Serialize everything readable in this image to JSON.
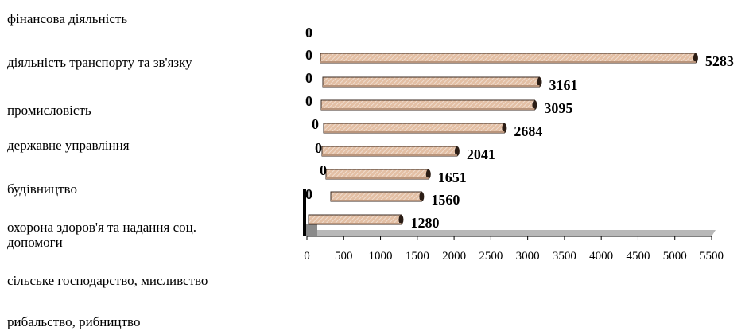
{
  "categories": [
    "фінансова діяльність",
    "діяльність транспорту та зв'язку",
    "промисловість",
    "державне управління",
    "будівництво",
    "охорона здоров'я та надання соц.\nдопомоги",
    "сільське господарство, мисливство",
    "рибальство,  рибництво"
  ],
  "chart_data": {
    "type": "bar",
    "orientation": "horizontal",
    "style": "3d-cylinder",
    "values": [
      5283,
      3161,
      3095,
      2684,
      2041,
      1651,
      1560,
      1280
    ],
    "value_labels": [
      "5283",
      "3161",
      "3095",
      "2684",
      "2041",
      "1651",
      "1560",
      "1280"
    ],
    "zero_labels": [
      "0",
      "0",
      "0",
      "0",
      "0",
      "0",
      "0",
      "0"
    ],
    "xlim": [
      0,
      5500
    ],
    "x_ticks": [
      "0",
      "500",
      "1000",
      "1500",
      "2000",
      "2500",
      "3000",
      "3500",
      "4000",
      "4500",
      "5000",
      "5500"
    ],
    "grid": false,
    "legend": "none"
  },
  "colors": {
    "bar_fill": "#e3bfa4",
    "bar_hatch": "#f3e6dc",
    "bar_outline": "#3a2a20",
    "bar_cap": "#2b1d15",
    "axis": "#000000",
    "floor": "#b8b8b8"
  }
}
